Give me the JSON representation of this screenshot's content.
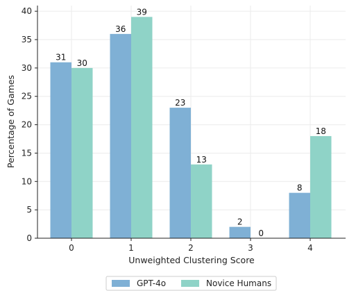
{
  "chart_data": {
    "type": "bar",
    "categories": [
      "0",
      "1",
      "2",
      "3",
      "4"
    ],
    "series": [
      {
        "name": "GPT-4o",
        "values": [
          31,
          36,
          23,
          2,
          8
        ],
        "color": "#7fb0d5"
      },
      {
        "name": "Novice Humans",
        "values": [
          30,
          39,
          13,
          0,
          18
        ],
        "color": "#8fd3c7"
      }
    ],
    "xlabel": "Unweighted Clustering Score",
    "ylabel": "Percentage of Games",
    "ylim": [
      0,
      41
    ],
    "yticks": [
      0,
      5,
      10,
      15,
      20,
      25,
      30,
      35,
      40
    ],
    "grid": true,
    "legend_position": "bottom-center"
  }
}
